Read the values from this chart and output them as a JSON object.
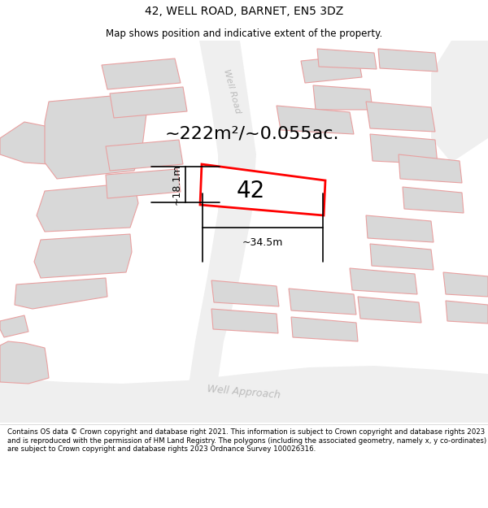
{
  "title": "42, WELL ROAD, BARNET, EN5 3DZ",
  "subtitle": "Map shows position and indicative extent of the property.",
  "footer": "Contains OS data © Crown copyright and database right 2021. This information is subject to Crown copyright and database rights 2023 and is reproduced with the permission of HM Land Registry. The polygons (including the associated geometry, namely x, y co-ordinates) are subject to Crown copyright and database rights 2023 Ordnance Survey 100026316.",
  "area_label": "~222m²/~0.055ac.",
  "plot_number": "42",
  "dim_width": "~34.5m",
  "dim_height": "~18.1m",
  "road_label_well": "Well Road",
  "road_label_approach": "Well Approach",
  "road_label_well2": "Well",
  "map_bg": "#ffffff",
  "plot_color": "#ff0000",
  "building_fill": "#d8d8d8",
  "building_edge": "#e8a0a0",
  "road_fill": "#eeeeee",
  "dim_color": "#000000",
  "road_text_color": "#bbbbbb",
  "title_fontsize": 10,
  "subtitle_fontsize": 8.5,
  "footer_fontsize": 6.2,
  "area_fontsize": 16,
  "num_fontsize": 20,
  "dim_fontsize": 9,
  "road_fontsize": 8
}
